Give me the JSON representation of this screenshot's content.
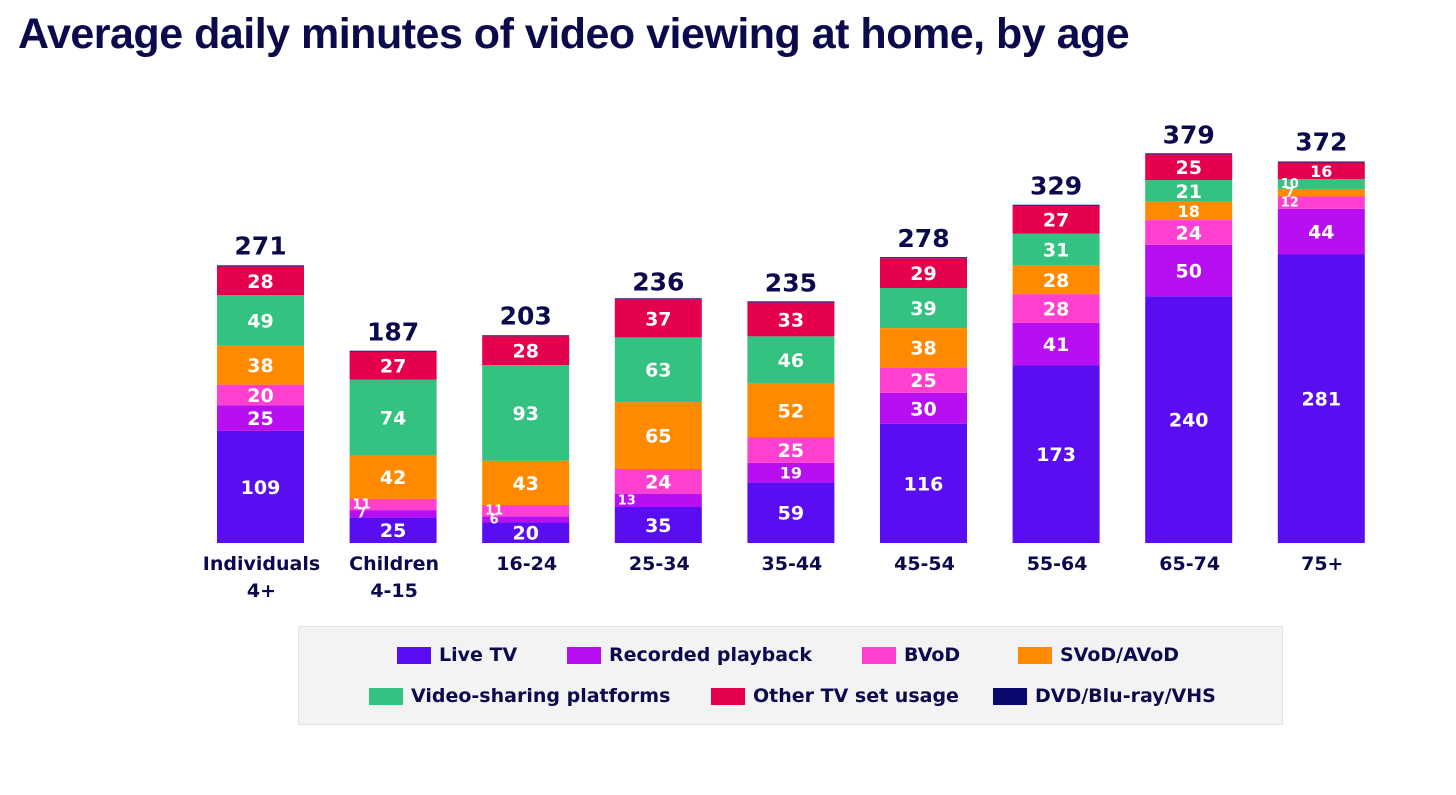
{
  "title": "Average daily minutes of video viewing at home, by age",
  "colors": {
    "text_dark": "#0a0a4d",
    "Live TV": "#5a0df0",
    "Recorded playback": "#b80ff2",
    "BVoD": "#ff3fd0",
    "SVoD/AVoD": "#ff8a00",
    "Video-sharing platforms": "#33c27f",
    "Other TV set usage": "#e5004f",
    "DVD/Blu-ray/VHS": "#0a0a6e"
  },
  "legend": {
    "items": [
      {
        "label": "Live TV",
        "color": "#5a0df0"
      },
      {
        "label": "Recorded playback",
        "color": "#b80ff2"
      },
      {
        "label": "BVoD",
        "color": "#ff3fd0"
      },
      {
        "label": "SVoD/AVoD",
        "color": "#ff8a00"
      },
      {
        "label": "Video-sharing platforms",
        "color": "#33c27f"
      },
      {
        "label": "Other TV set usage",
        "color": "#e5004f"
      },
      {
        "label": "DVD/Blu-ray/VHS",
        "color": "#0a0a6e"
      }
    ]
  },
  "chart_data": {
    "type": "bar",
    "stacked": true,
    "title": "Average daily minutes of video viewing at home, by age",
    "categories": [
      [
        "Individuals",
        "4+"
      ],
      [
        "Children",
        "4-15"
      ],
      [
        "16-24"
      ],
      [
        "25-34"
      ],
      [
        "35-44"
      ],
      [
        "45-54"
      ],
      [
        "55-64"
      ],
      [
        "65-74"
      ],
      [
        "75+"
      ]
    ],
    "totals": [
      271,
      187,
      203,
      236,
      235,
      278,
      329,
      379,
      372
    ],
    "series": [
      {
        "name": "Live TV",
        "values": [
          109,
          25,
          20,
          35,
          59,
          116,
          173,
          240,
          281
        ]
      },
      {
        "name": "Recorded playback",
        "values": [
          25,
          7,
          6,
          13,
          19,
          30,
          41,
          50,
          44
        ]
      },
      {
        "name": "BVoD",
        "values": [
          20,
          11,
          11,
          24,
          25,
          25,
          28,
          24,
          12
        ]
      },
      {
        "name": "SVoD/AVoD",
        "values": [
          38,
          42,
          43,
          65,
          52,
          38,
          28,
          18,
          7
        ]
      },
      {
        "name": "Video-sharing platforms",
        "values": [
          49,
          74,
          93,
          63,
          46,
          39,
          31,
          21,
          10
        ]
      },
      {
        "name": "Other TV set usage",
        "values": [
          28,
          27,
          28,
          37,
          33,
          29,
          27,
          25,
          16
        ]
      },
      {
        "name": "DVD/Blu-ray/VHS",
        "values": [
          1,
          1,
          1,
          1,
          1,
          1,
          1,
          1,
          1
        ]
      }
    ],
    "ylim": [
      0,
      390
    ],
    "grid": false,
    "legend_position": "bottom"
  }
}
